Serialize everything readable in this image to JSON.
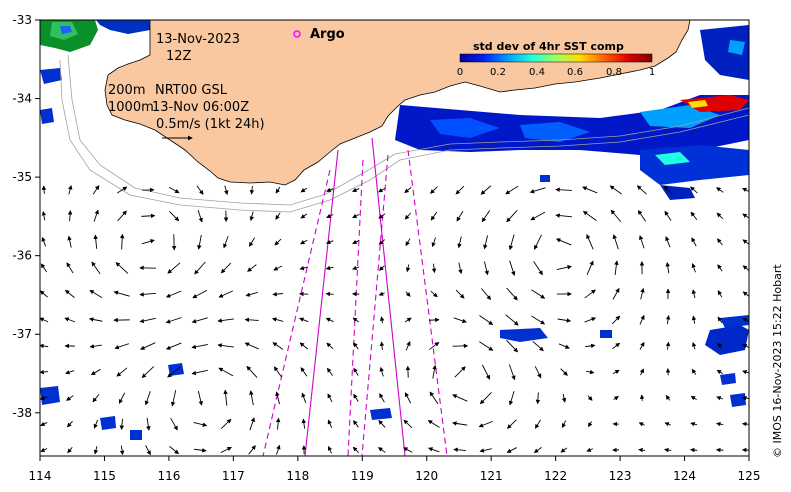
{
  "map": {
    "date_line1": "13-Nov-2023",
    "date_line2": "12Z",
    "model_line_a1": "200m",
    "model_line_a2": "NRT00 GSL",
    "model_line_b1": "1000m",
    "model_line_b2": "13-Nov 06:00Z",
    "scale_label": "0.5m/s (1kt 24h)",
    "argo_label": "Argo",
    "colorbar_title": "std dev of 4hr SST comp",
    "colorbar_ticks": [
      "0",
      "0.2",
      "0.4",
      "0.6",
      "0.8",
      "1"
    ],
    "credit": "© IMOS 16-Nov-2023 15:22 Hobart",
    "lon_ticks": [
      "114",
      "115",
      "116",
      "117",
      "118",
      "119",
      "120",
      "121",
      "122",
      "123",
      "124",
      "125"
    ],
    "lat_ticks": [
      "-33",
      "-34",
      "-35",
      "-36",
      "-37",
      "-38"
    ],
    "lon_range": [
      114,
      125
    ],
    "lat_range": [
      -38.55,
      -33
    ],
    "colors": {
      "land": "#f9c8a0",
      "track": "#cc00cc",
      "argo": "#ff00ff",
      "frame": "#000000"
    },
    "colormap": [
      "#00008f",
      "#0020ff",
      "#00a0ff",
      "#20ffdf",
      "#9fff60",
      "#ffdf00",
      "#ff6000",
      "#df0000",
      "#800000"
    ]
  }
}
